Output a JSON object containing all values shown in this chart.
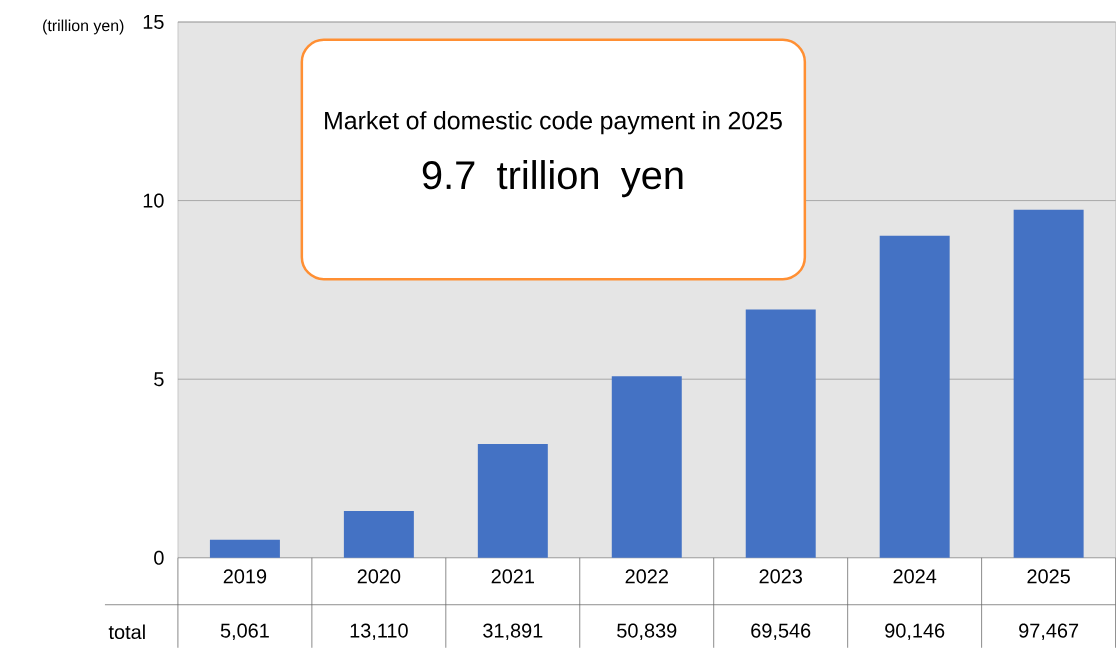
{
  "chart_data": {
    "type": "bar",
    "ylabel": "(trillion yen)",
    "annotations": [
      "Market of domestic code payment in 2025",
      "9.7 trillion yen",
      "5,061",
      "13,110",
      "31,891",
      "50,839",
      "69,546",
      "90,146",
      "97,467"
    ],
    "categories": [
      "2019",
      "2020",
      "2021",
      "2022",
      "2023",
      "2024",
      "2025"
    ],
    "series": [
      {
        "name": "total",
        "color": "#4472c4",
        "values": [
          0.5061,
          1.311,
          3.1891,
          5.0839,
          6.9546,
          9.0146,
          9.7467
        ]
      }
    ],
    "ylim": [
      0,
      15
    ],
    "yticks": [
      0,
      5,
      10,
      15
    ],
    "grid": "y"
  }
}
